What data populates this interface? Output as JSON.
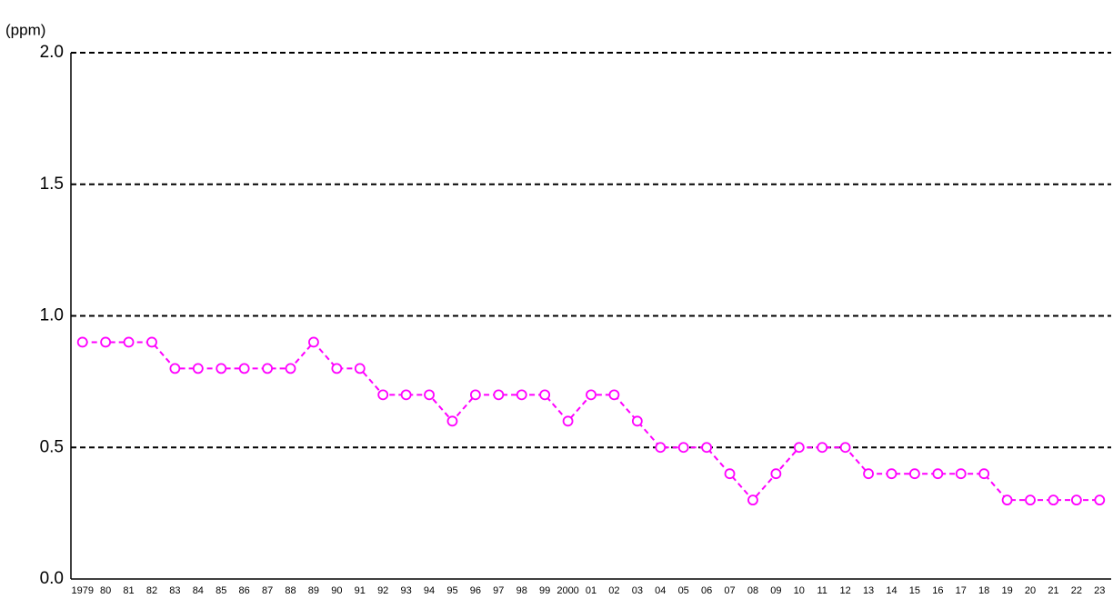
{
  "chart_data": {
    "type": "line",
    "y_label": "(ppm)",
    "categories": [
      "1979",
      "80",
      "81",
      "82",
      "83",
      "84",
      "85",
      "86",
      "87",
      "88",
      "89",
      "90",
      "91",
      "92",
      "93",
      "94",
      "95",
      "96",
      "97",
      "98",
      "99",
      "2000",
      "01",
      "02",
      "03",
      "04",
      "05",
      "06",
      "07",
      "08",
      "09",
      "10",
      "11",
      "12",
      "13",
      "14",
      "15",
      "16",
      "17",
      "18",
      "19",
      "20",
      "21",
      "22",
      "23"
    ],
    "values": [
      0.9,
      0.9,
      0.9,
      0.9,
      0.8,
      0.8,
      0.8,
      0.8,
      0.8,
      0.8,
      0.9,
      0.8,
      0.8,
      0.7,
      0.7,
      0.7,
      0.6,
      0.7,
      0.7,
      0.7,
      0.7,
      0.6,
      0.7,
      0.7,
      0.6,
      0.5,
      0.5,
      0.5,
      0.4,
      0.3,
      0.4,
      0.5,
      0.5,
      0.5,
      0.4,
      0.4,
      0.4,
      0.4,
      0.4,
      0.4,
      0.3,
      0.3,
      0.3,
      0.3,
      0.3
    ],
    "color": "#ff00ff",
    "ylim": [
      0,
      2
    ],
    "yticks": [
      {
        "value": 0,
        "label": "0.0"
      },
      0.5,
      {
        "value": 1,
        "label": "1.0"
      },
      1.5,
      {
        "value": 2,
        "label": "2.0"
      }
    ],
    "grid": true
  }
}
